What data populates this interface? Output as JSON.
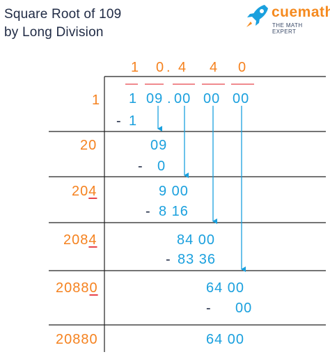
{
  "title": {
    "line1": "Square Root of 109",
    "line2": "by Long Division"
  },
  "brand": {
    "name": "cuemath",
    "tagline": "THE MATH EXPERT",
    "logo_icon": "rocket-icon",
    "name_color": "#f58a1f",
    "icon_color": "#1aa0de"
  },
  "colors": {
    "divisor": "#f5821f",
    "work": "#1aa0de",
    "lines": "#222222",
    "bars": "#e8434a",
    "arrows": "#1aa0de"
  },
  "quotient": [
    "1",
    "0",
    ".",
    "4",
    "4",
    "0"
  ],
  "dividend": [
    "1",
    "09",
    ".",
    "00",
    "00",
    "00"
  ],
  "rows": [
    {
      "divisor_pre": "1",
      "divisor_last": "",
      "work": "1"
    },
    {
      "divisor_pre": "20",
      "divisor_last": "",
      "value": "09",
      "work": "0"
    },
    {
      "divisor_pre": "20",
      "divisor_last": "4",
      "value": "9 00",
      "work": "8 16"
    },
    {
      "divisor_pre": "208",
      "divisor_last": "4",
      "value": "84 00",
      "work": "83 36"
    },
    {
      "divisor_pre": "2088",
      "divisor_last": "0",
      "value": "64 00",
      "work": "00"
    },
    {
      "divisor_pre": "20880",
      "divisor_last": "",
      "value": "64 00"
    }
  ],
  "minus": "-"
}
